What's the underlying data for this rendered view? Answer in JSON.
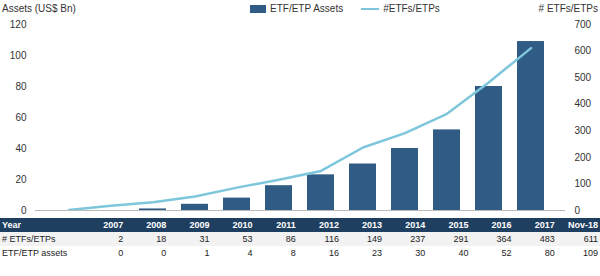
{
  "chart_data": {
    "type": "bar",
    "y_label": "Assets (US$ Bn)",
    "y2_label": "# ETFs/ETPs",
    "categories": [
      "2007",
      "2008",
      "2009",
      "2010",
      "2011",
      "2012",
      "2013",
      "2014",
      "2015",
      "2016",
      "2017",
      "Nov-18"
    ],
    "series": [
      {
        "name": "ETF/ETP Assets",
        "type": "bar",
        "color": "#2f5b85",
        "values": [
          0,
          0,
          1,
          4,
          8,
          16,
          23,
          30,
          40,
          52,
          80,
          109
        ]
      },
      {
        "name": "#ETFs/ETPs",
        "type": "line",
        "axis": "y2",
        "color": "#7ec6dc",
        "values": [
          2,
          18,
          31,
          53,
          86,
          116,
          149,
          237,
          291,
          364,
          483,
          611
        ]
      }
    ],
    "ylim": [
      0,
      120
    ],
    "yticks": [
      0,
      20,
      40,
      60,
      80,
      100,
      120
    ],
    "y2lim": [
      0,
      700
    ],
    "y2ticks": [
      0,
      100,
      200,
      300,
      400,
      500,
      600,
      700
    ],
    "grid": false,
    "legend": "top",
    "table_row_labels": [
      "Year",
      "# ETFs/ETPs",
      "ETF/ETP assets"
    ]
  }
}
